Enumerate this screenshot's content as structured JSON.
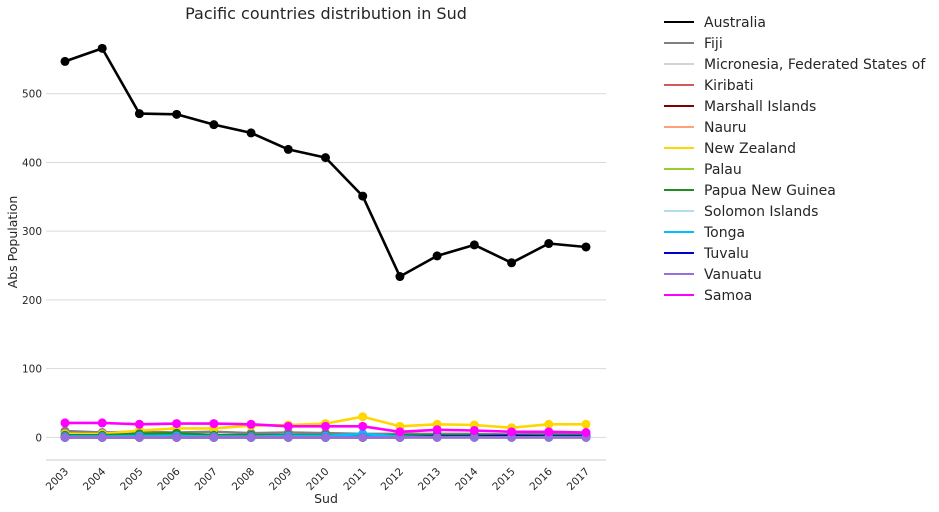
{
  "chart_data": {
    "type": "line",
    "title": "Pacific countries distribution in Sud",
    "xlabel": "Sud",
    "ylabel": "Abs Population",
    "categories": [
      "2003",
      "2004",
      "2005",
      "2006",
      "2007",
      "2008",
      "2009",
      "2010",
      "2011",
      "2012",
      "2013",
      "2014",
      "2015",
      "2016",
      "2017"
    ],
    "ylim": [
      -33,
      600
    ],
    "yticks": [
      0,
      100,
      200,
      300,
      400,
      500
    ],
    "grid": "horizontal",
    "legend_position": "outside-right",
    "series": [
      {
        "name": "Australia",
        "color": "#000000",
        "values": [
          547,
          566,
          471,
          470,
          455,
          443,
          419,
          407,
          351,
          234,
          264,
          280,
          254,
          282,
          277
        ]
      },
      {
        "name": "Fiji",
        "color": "#808080",
        "values": [
          9,
          7,
          8,
          7,
          8,
          6,
          7,
          6,
          5,
          5,
          5,
          5,
          4,
          5,
          4
        ]
      },
      {
        "name": "Micronesia, Federated States of",
        "color": "#d3d3d3",
        "values": [
          0,
          0,
          0,
          0,
          0,
          0,
          0,
          0,
          0,
          0,
          0,
          0,
          0,
          0,
          0
        ]
      },
      {
        "name": "Kiribati",
        "color": "#cd5c5c",
        "values": [
          0,
          0,
          0,
          0,
          0,
          0,
          0,
          0,
          0,
          0,
          0,
          0,
          0,
          0,
          0
        ]
      },
      {
        "name": "Marshall Islands",
        "color": "#800000",
        "values": [
          0,
          0,
          0,
          0,
          0,
          0,
          0,
          0,
          0,
          0,
          0,
          0,
          0,
          0,
          0
        ]
      },
      {
        "name": "Nauru",
        "color": "#ffa07a",
        "values": [
          1,
          1,
          1,
          1,
          1,
          1,
          1,
          1,
          1,
          1,
          1,
          1,
          1,
          1,
          1
        ]
      },
      {
        "name": "New Zealand",
        "color": "#ffd700",
        "values": [
          5,
          5,
          10,
          13,
          13,
          17,
          18,
          20,
          30,
          16,
          19,
          18,
          14,
          19,
          19
        ]
      },
      {
        "name": "Palau",
        "color": "#9acd32",
        "values": [
          0,
          0,
          0,
          0,
          0,
          0,
          0,
          0,
          0,
          0,
          0,
          0,
          0,
          0,
          0
        ]
      },
      {
        "name": "Papua New Guinea",
        "color": "#228b22",
        "values": [
          3,
          3,
          5,
          6,
          3,
          3,
          3,
          3,
          3,
          3,
          3,
          3,
          3,
          3,
          3
        ]
      },
      {
        "name": "Solomon Islands",
        "color": "#b0e0e6",
        "values": [
          0,
          0,
          0,
          0,
          0,
          0,
          0,
          0,
          0,
          0,
          0,
          0,
          0,
          0,
          0
        ]
      },
      {
        "name": "Tonga",
        "color": "#00bfff",
        "values": [
          1,
          1,
          2,
          2,
          1,
          1,
          2,
          2,
          5,
          1,
          1,
          1,
          1,
          1,
          1
        ]
      },
      {
        "name": "Tuvalu",
        "color": "#0000cd",
        "values": [
          0,
          0,
          0,
          0,
          0,
          0,
          0,
          0,
          0,
          0,
          1,
          1,
          2,
          1,
          1
        ]
      },
      {
        "name": "Vanuatu",
        "color": "#9370db",
        "values": [
          0,
          0,
          0,
          0,
          0,
          0,
          0,
          0,
          0,
          0,
          0,
          0,
          0,
          0,
          0
        ]
      },
      {
        "name": "Samoa",
        "color": "#ff00ff",
        "values": [
          21,
          21,
          19,
          20,
          20,
          19,
          16,
          16,
          16,
          8,
          11,
          10,
          8,
          8,
          7
        ]
      }
    ]
  }
}
